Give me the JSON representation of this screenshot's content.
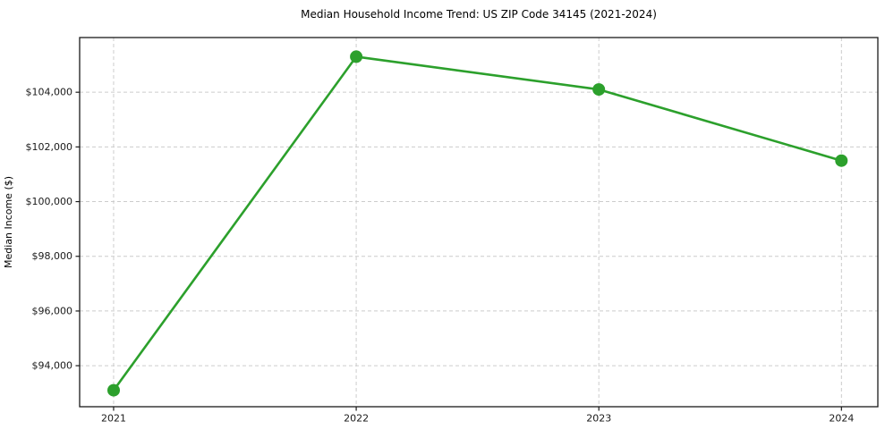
{
  "title": "Median Household Income Trend: US ZIP Code 34145 (2021-2024)",
  "chart_data": {
    "type": "line",
    "title": "Median Household Income Trend: US ZIP Code 34145 (2021-2024)",
    "xlabel": "",
    "ylabel": "Median Income ($)",
    "x": [
      2021,
      2022,
      2023,
      2024
    ],
    "series": [
      {
        "name": "Median Household Income",
        "values": [
          93100,
          105300,
          104100,
          101500
        ],
        "color": "#2ca02c"
      }
    ],
    "xticks": [
      2021,
      2022,
      2023,
      2024
    ],
    "xtick_labels": [
      "2021",
      "2022",
      "2023",
      "2024"
    ],
    "yticks": [
      94000,
      96000,
      98000,
      100000,
      102000,
      104000
    ],
    "ytick_labels": [
      "$94,000",
      "$96,000",
      "$98,000",
      "$100,000",
      "$102,000",
      "$104,000"
    ],
    "xlim": [
      2020.86,
      2024.15
    ],
    "ylim": [
      92500,
      106000
    ],
    "grid": true,
    "legend": "none",
    "colors": {
      "line": "#2ca02c",
      "marker": "#2ca02c",
      "grid": "#cccccc",
      "spine": "#1a1a1a",
      "background": "#ffffff",
      "text": "#1a1a1a"
    }
  }
}
